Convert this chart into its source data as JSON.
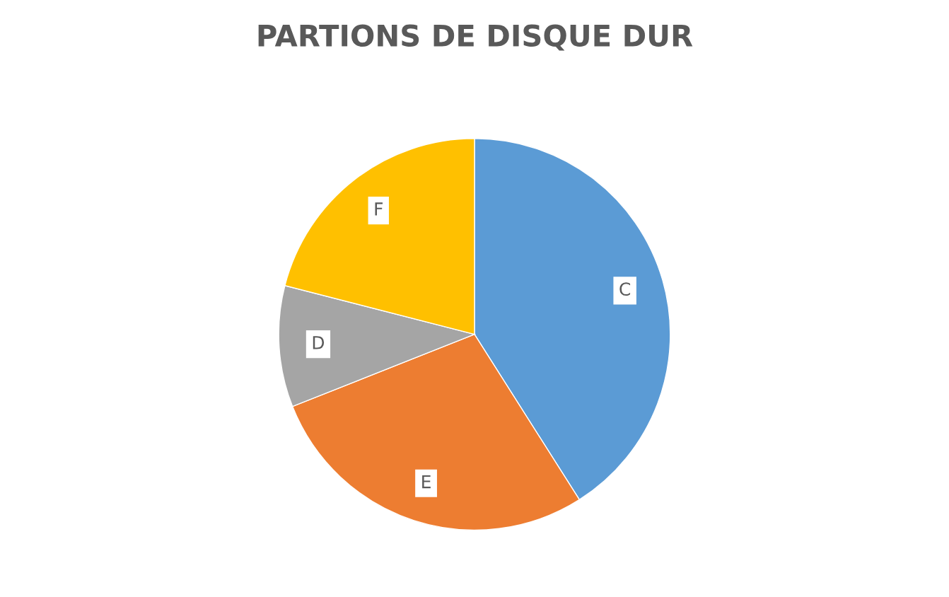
{
  "chart_data": {
    "type": "pie",
    "title": "PARTIONS DE DISQUE DUR",
    "categories": [
      "C",
      "E",
      "D",
      "F"
    ],
    "values": [
      41,
      28,
      10,
      21
    ],
    "colors": [
      "#5b9bd5",
      "#ed7d31",
      "#a5a5a5",
      "#ffc000"
    ],
    "legend": false
  }
}
